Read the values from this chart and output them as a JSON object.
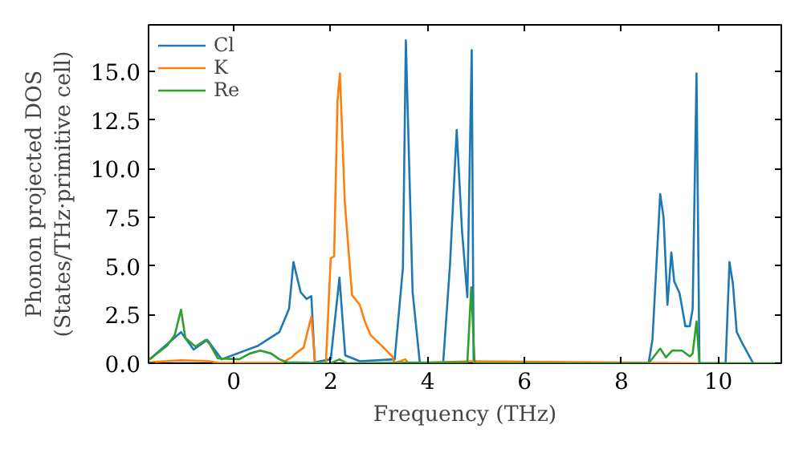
{
  "chart_data": {
    "type": "line",
    "xlabel": "Frequency (THz)",
    "ylabel": "Phonon projected DOS\n(States/THz·primitive cell)",
    "xlim": [
      -1.76,
      11.3
    ],
    "ylim": [
      0,
      17.4
    ],
    "xticks": [
      0,
      2,
      4,
      6,
      8,
      10
    ],
    "yticks": [
      {
        "value": 0,
        "label": "0.0"
      },
      {
        "value": 2.5,
        "label": "2.5"
      },
      {
        "value": 5,
        "label": "5.0"
      },
      {
        "value": 7.5,
        "label": "7.5"
      },
      {
        "value": 10,
        "label": "10.0"
      },
      {
        "value": 12.5,
        "label": "12.5"
      },
      {
        "value": 15,
        "label": "15.0"
      }
    ],
    "legend": "top left",
    "grid": false,
    "series": [
      {
        "name": "Cl",
        "color": "#1f77b4",
        "x": [
          -1.74,
          -1.09,
          -0.83,
          -0.55,
          -0.25,
          0.5,
          0.94,
          1.14,
          1.23,
          1.38,
          1.5,
          1.6,
          1.67,
          2.0,
          2.18,
          2.3,
          2.6,
          3.32,
          3.49,
          3.55,
          3.69,
          3.84,
          4.32,
          4.46,
          4.6,
          4.71,
          4.82,
          4.91,
          4.95,
          8.56,
          8.64,
          8.8,
          8.87,
          8.95,
          9.03,
          9.09,
          9.2,
          9.32,
          9.41,
          9.47,
          9.55,
          9.61,
          10.15,
          10.23,
          10.3,
          10.38,
          10.49,
          10.72
        ],
        "values": [
          0.2,
          1.6,
          0.7,
          1.2,
          0.2,
          0.9,
          1.6,
          2.8,
          5.2,
          3.65,
          3.3,
          3.45,
          0.05,
          0.2,
          4.4,
          0.4,
          0.1,
          0.2,
          4.9,
          16.6,
          3.65,
          0,
          0,
          5.0,
          12.0,
          6.8,
          3.4,
          16.1,
          0,
          0,
          1.2,
          8.7,
          7.5,
          3.0,
          5.7,
          4.2,
          3.6,
          1.9,
          1.9,
          2.8,
          14.9,
          0,
          0,
          5.2,
          4.1,
          1.6,
          1.05,
          0
        ]
      },
      {
        "name": "K",
        "color": "#ff7f0e",
        "x": [
          -1.74,
          -1.09,
          -0.5,
          -0.33,
          1.0,
          1.22,
          1.25,
          1.44,
          1.6,
          1.68,
          1.9,
          2.0,
          2.07,
          2.14,
          2.19,
          2.29,
          2.44,
          2.6,
          2.71,
          2.82,
          3.05,
          3.27,
          3.32,
          3.54,
          3.6,
          4.9,
          9.6
        ],
        "values": [
          0.05,
          0.15,
          0.1,
          0.02,
          0.02,
          0.35,
          0.45,
          0.8,
          2.4,
          0,
          0,
          5.4,
          5.5,
          13.5,
          14.9,
          8.3,
          3.5,
          3.0,
          2.1,
          1.45,
          0.9,
          0.35,
          0,
          0.2,
          0,
          0.1,
          0
        ]
      },
      {
        "name": "Re",
        "color": "#2ca02c",
        "x": [
          -1.74,
          -1.38,
          -1.22,
          -1.09,
          -1.0,
          -0.79,
          -0.58,
          -0.5,
          -0.33,
          0.11,
          0.33,
          0.55,
          0.77,
          0.94,
          1.1,
          2.0,
          2.18,
          2.33,
          4.82,
          4.9,
          4.97,
          8.56,
          8.8,
          8.92,
          9.05,
          9.25,
          9.41,
          9.47,
          9.55,
          9.61,
          11.3
        ],
        "values": [
          0.2,
          0.9,
          1.45,
          2.75,
          1.3,
          0.85,
          1.2,
          1.0,
          0.25,
          0.2,
          0.5,
          0.65,
          0.5,
          0.2,
          0.05,
          0,
          0.2,
          0,
          0.05,
          3.9,
          0,
          0,
          0.75,
          0.3,
          0.65,
          0.65,
          0.35,
          0.5,
          2.15,
          0,
          0
        ]
      }
    ]
  }
}
